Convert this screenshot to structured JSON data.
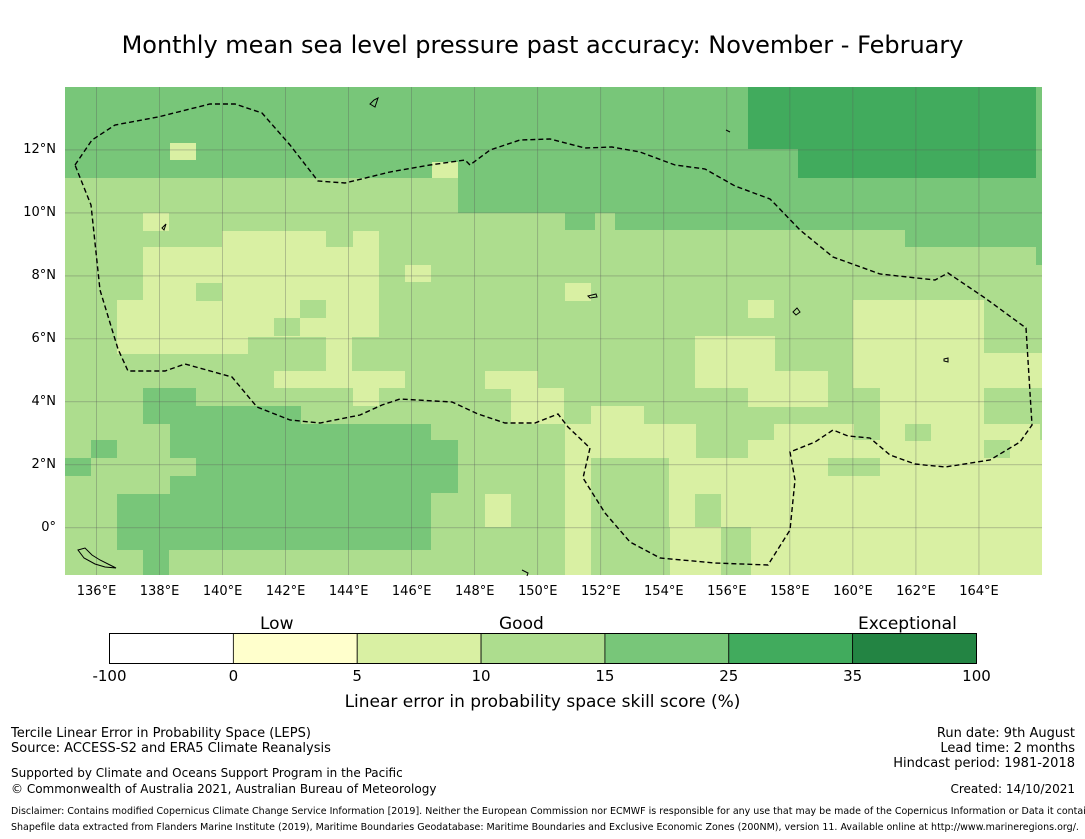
{
  "title": "Monthly mean sea level pressure past accuracy: November - February",
  "map": {
    "lon_labels": [
      "136°E",
      "138°E",
      "140°E",
      "142°E",
      "144°E",
      "146°E",
      "148°E",
      "150°E",
      "152°E",
      "154°E",
      "156°E",
      "158°E",
      "160°E",
      "162°E",
      "164°E"
    ],
    "lat_labels": [
      "12°N",
      "10°N",
      "8°N",
      "6°N",
      "4°N",
      "2°N",
      "0°"
    ],
    "lon_range": [
      135.0,
      166.0
    ],
    "lat_range": [
      -1.5,
      14.0
    ],
    "boundary_style": "dashed"
  },
  "colorbar": {
    "category_labels": [
      "Low",
      "Good",
      "Exceptional"
    ],
    "ticks": [
      "-100",
      "0",
      "5",
      "10",
      "15",
      "25",
      "35",
      "100"
    ],
    "colors": [
      "#ffffff",
      "#ffffcc",
      "#d9f0a3",
      "#addd8e",
      "#78c679",
      "#41ab5d",
      "#238443"
    ],
    "title": "Linear error in probability space skill score (%)"
  },
  "footer": {
    "left_line1": "Tercile Linear Error in Probability Space (LEPS)",
    "left_line2": "Source: ACCESS-S2 and ERA5 Climate Reanalysis",
    "left_line3": "Supported by Climate and Oceans Support Program in the Pacific",
    "left_line4": "© Commonwealth of Australia 2021, Australian Bureau of Meteorology",
    "right_line1": "Run date: 9th August",
    "right_line2": "Lead time: 2 months",
    "right_line3": "Hindcast period: 1981-2018",
    "created": "Created: 14/10/2021",
    "disclaimer1": "Disclaimer: Contains modified Copernicus Climate Change Service Information [2019]. Neither the European Commission nor ECMWF is responsible for any use that may be made of the Copernicus Information or Data it contains.",
    "disclaimer2": "Shapefile data extracted from Flanders Marine Institute (2019), Maritime Boundaries Geodatabase: Maritime Boundaries and Exclusive Economic Zones (200NM), version 11. Available online at http://www.marineregions.org/."
  }
}
